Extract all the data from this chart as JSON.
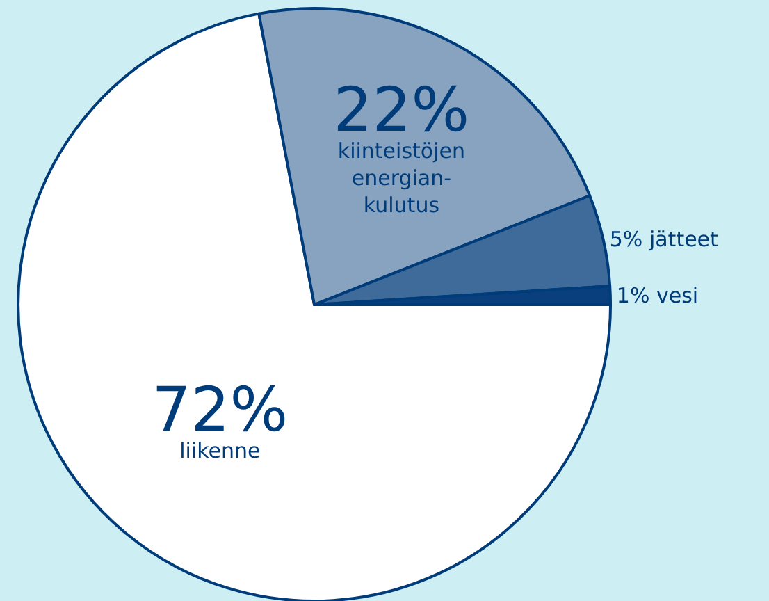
{
  "chart_data": {
    "type": "pie",
    "categories": [
      "liikenne",
      "kiinteistöjen energian-kulutus",
      "jätteet",
      "vesi"
    ],
    "values": [
      72,
      22,
      5,
      1
    ],
    "value_labels": [
      "72%",
      "22%",
      "5%",
      "1%"
    ],
    "colors": [
      "#ffffff",
      "#87a3c0",
      "#3e6b9a",
      "#0a3f7d"
    ],
    "legend": false
  }
}
